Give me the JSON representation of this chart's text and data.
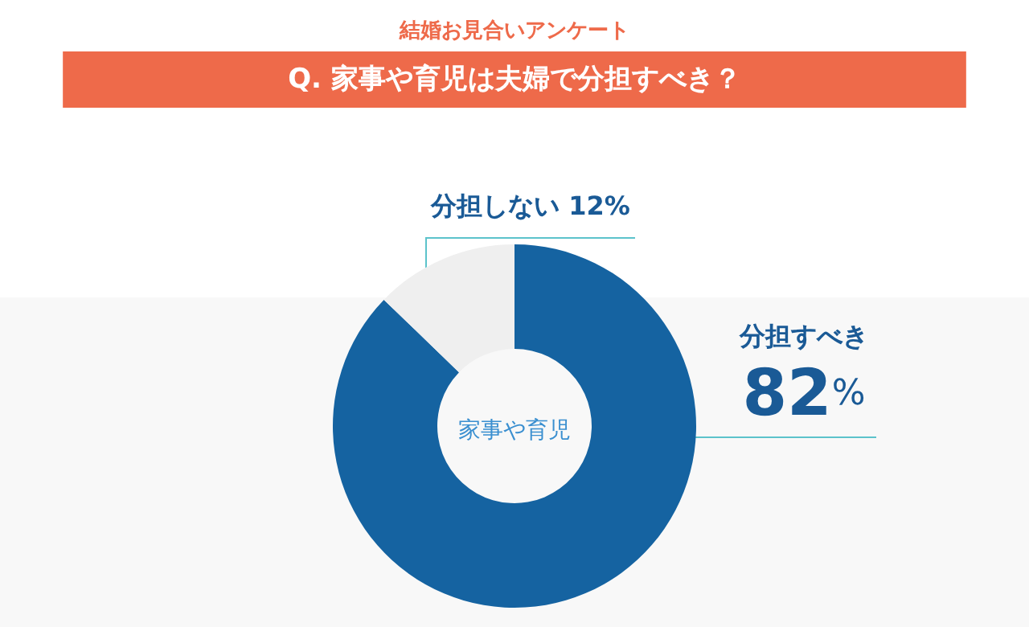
{
  "chart_data": {
    "type": "donut",
    "title": "結婚お見合いアンケート",
    "subtitle": "Q. 家事や育児は夫婦で分担すべき？",
    "categories": [
      "分担すべき",
      "分担しない"
    ],
    "values": [
      82,
      12
    ],
    "value_labels": [
      "82%",
      "12%"
    ],
    "colors": [
      "#1563a1",
      "#efefef"
    ],
    "annotations": [
      "家事や育児"
    ],
    "legend": false
  }
}
